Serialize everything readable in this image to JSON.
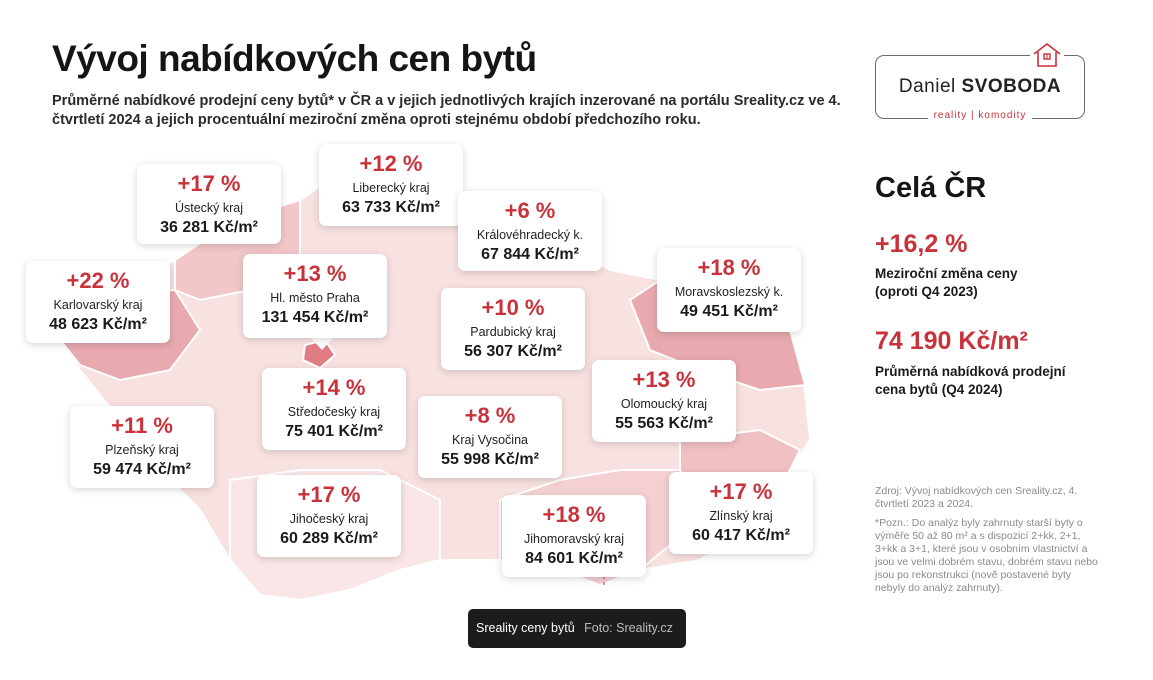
{
  "title": "Vývoj nabídkových cen bytů",
  "subtitle": "Průměrné nabídkové prodejní ceny bytů* v ČR a v jejich jednotlivých krajích inzerované na portálu Sreality.cz ve 4. čtvrtletí 2024 a jejich procentuální meziroční změna oproti stejnému období předchozího roku.",
  "logo": {
    "first": "Daniel",
    "last": "SVOBODA",
    "tagline": "reality | komodity",
    "icon": "house-icon"
  },
  "regions": [
    {
      "pct": "+17 %",
      "name": "Ústecký kraj",
      "price": "36 281 Kč/m²"
    },
    {
      "pct": "+12 %",
      "name": "Liberecký kraj",
      "price": "63 733 Kč/m²"
    },
    {
      "pct": "+6 %",
      "name": "Královéhradecký k.",
      "price": "67 844 Kč/m²"
    },
    {
      "pct": "+22 %",
      "name": "Karlovarský kraj",
      "price": "48 623 Kč/m²"
    },
    {
      "pct": "+13 %",
      "name": "Hl. město Praha",
      "price": "131 454 Kč/m²"
    },
    {
      "pct": "+10 %",
      "name": "Pardubický kraj",
      "price": "56 307 Kč/m²"
    },
    {
      "pct": "+18 %",
      "name": "Moravskoslezský k.",
      "price": "49 451 Kč/m²"
    },
    {
      "pct": "+14 %",
      "name": "Středočeský kraj",
      "price": "75 401 Kč/m²"
    },
    {
      "pct": "+13 %",
      "name": "Olomoucký kraj",
      "price": "55 563 Kč/m²"
    },
    {
      "pct": "+11 %",
      "name": "Plzeňský kraj",
      "price": "59 474 Kč/m²"
    },
    {
      "pct": "+8 %",
      "name": "Kraj Vysočina",
      "price": "55 998 Kč/m²"
    },
    {
      "pct": "+17 %",
      "name": "Jihočeský kraj",
      "price": "60 289 Kč/m²"
    },
    {
      "pct": "+18 %",
      "name": "Jihomoravský kraj",
      "price": "84 601 Kč/m²"
    },
    {
      "pct": "+17 %",
      "name": "Zlínský kraj",
      "price": "60 417 Kč/m²"
    }
  ],
  "summary": {
    "heading": "Celá ČR",
    "change": "+16,2 %",
    "change_label_1": "Meziroční změna ceny",
    "change_label_2": "(oproti Q4 2023)",
    "price": "74 190 Kč/m²",
    "price_label_1": "Průměrná nabídková prodejní",
    "price_label_2": "cena bytů (Q4 2024)"
  },
  "source": "Zdroj: Vývoj nabídkových cen Sreality.cz, 4. čtvrtletí 2023 a 2024.",
  "note": "*Pozn.: Do analýz byly zahrnuty starší byty o výměře 50 až 80 m² a s dispozicí 2+kk, 2+1, 3+kk a 3+1, které jsou v osobním vlastnictví a jsou ve velmi dobrém stavu, dobrém stavu nebo jsou po rekonstrukci (nově postavené byty nebyly do analýz zahrnuty).",
  "caption": {
    "title": "Sreality ceny bytů",
    "credit": "Foto: Sreality.cz"
  },
  "colors": {
    "accent": "#c8323a",
    "map_light": "#f6dcdc",
    "map_dark": "#e7a6aa"
  }
}
